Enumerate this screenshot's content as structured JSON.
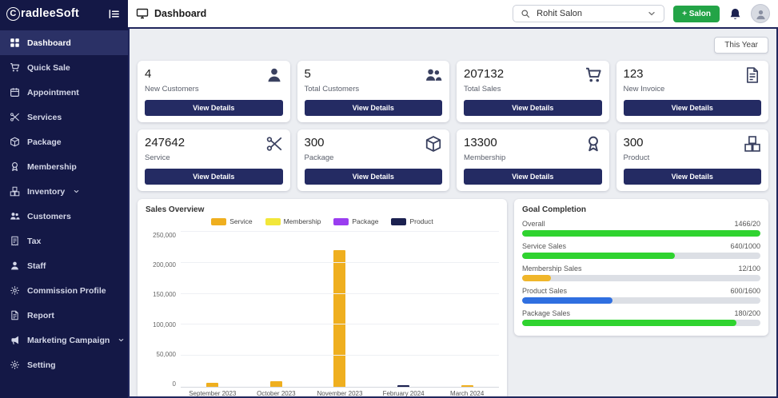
{
  "brand": {
    "full": "CradleeSoft",
    "initial": "C",
    "rest": "radleeSoft"
  },
  "header": {
    "title": "Dashboard",
    "salon_selector": {
      "value": "Rohit Salon"
    },
    "add_salon_label": "+ Salon"
  },
  "sidebar": {
    "items": [
      {
        "label": "Dashboard",
        "icon": "grid",
        "active": true
      },
      {
        "label": "Quick Sale",
        "icon": "cart"
      },
      {
        "label": "Appointment",
        "icon": "calendar"
      },
      {
        "label": "Services",
        "icon": "scissors"
      },
      {
        "label": "Package",
        "icon": "box"
      },
      {
        "label": "Membership",
        "icon": "award"
      },
      {
        "label": "Inventory",
        "icon": "boxes",
        "expandable": true
      },
      {
        "label": "Customers",
        "icon": "people"
      },
      {
        "label": "Tax",
        "icon": "receipt"
      },
      {
        "label": "Staff",
        "icon": "person"
      },
      {
        "label": "Commission Profile",
        "icon": "gear"
      },
      {
        "label": "Report",
        "icon": "doc"
      },
      {
        "label": "Marketing Campaign",
        "icon": "megaphone",
        "expandable": true
      },
      {
        "label": "Setting",
        "icon": "gear"
      }
    ]
  },
  "filters": {
    "period": "This Year"
  },
  "stats": [
    {
      "value": "4",
      "label": "New Customers",
      "icon": "person",
      "cta": "View Details"
    },
    {
      "value": "5",
      "label": "Total Customers",
      "icon": "people",
      "cta": "View Details"
    },
    {
      "value": "207132",
      "label": "Total Sales",
      "icon": "cart",
      "cta": "View Details"
    },
    {
      "value": "123",
      "label": "New Invoice",
      "icon": "doc",
      "cta": "View Details"
    },
    {
      "value": "247642",
      "label": "Service",
      "icon": "scissors",
      "cta": "View Details"
    },
    {
      "value": "300",
      "label": "Package",
      "icon": "box",
      "cta": "View Details"
    },
    {
      "value": "13300",
      "label": "Membership",
      "icon": "award",
      "cta": "View Details"
    },
    {
      "value": "300",
      "label": "Product",
      "icon": "boxes",
      "cta": "View Details"
    }
  ],
  "chart_data": {
    "type": "bar",
    "title": "Sales Overview",
    "categories": [
      "September 2023",
      "October 2023",
      "November 2023",
      "February 2024",
      "March 2024"
    ],
    "series": [
      {
        "name": "Service",
        "color": "#efaf1f",
        "values": [
          7000,
          8500,
          220000,
          0,
          2500
        ]
      },
      {
        "name": "Membership",
        "color": "#f2e73a",
        "values": [
          0,
          0,
          0,
          0,
          0
        ]
      },
      {
        "name": "Package",
        "color": "#9a3df0",
        "values": [
          0,
          0,
          0,
          0,
          0
        ]
      },
      {
        "name": "Product",
        "color": "#1b2150",
        "values": [
          0,
          0,
          0,
          2000,
          0
        ]
      }
    ],
    "ylim": [
      0,
      250000
    ],
    "y_ticks": [
      "250,000",
      "200,000",
      "150,000",
      "100,000",
      "50,000",
      "0"
    ],
    "legend_position": "top",
    "grid": true
  },
  "goals": {
    "title": "Goal Completion",
    "rows": [
      {
        "label": "Overall",
        "value": "1466/20",
        "percent": 100,
        "color": "#2fd32f"
      },
      {
        "label": "Service Sales",
        "value": "640/1000",
        "percent": 64,
        "color": "#2fd32f"
      },
      {
        "label": "Membership Sales",
        "value": "12/100",
        "percent": 12,
        "color": "#f0b62a"
      },
      {
        "label": "Product Sales",
        "value": "600/1600",
        "percent": 38,
        "color": "#2f6fe0"
      },
      {
        "label": "Package Sales",
        "value": "180/200",
        "percent": 90,
        "color": "#2fd32f"
      }
    ]
  },
  "colors": {
    "sidebar_bg": "#141846",
    "active_item_bg": "#2b3166",
    "content_border": "#20265c",
    "view_details_bg": "#242b63",
    "add_salon_green": "#23a447",
    "content_bg": "#eceef2"
  }
}
